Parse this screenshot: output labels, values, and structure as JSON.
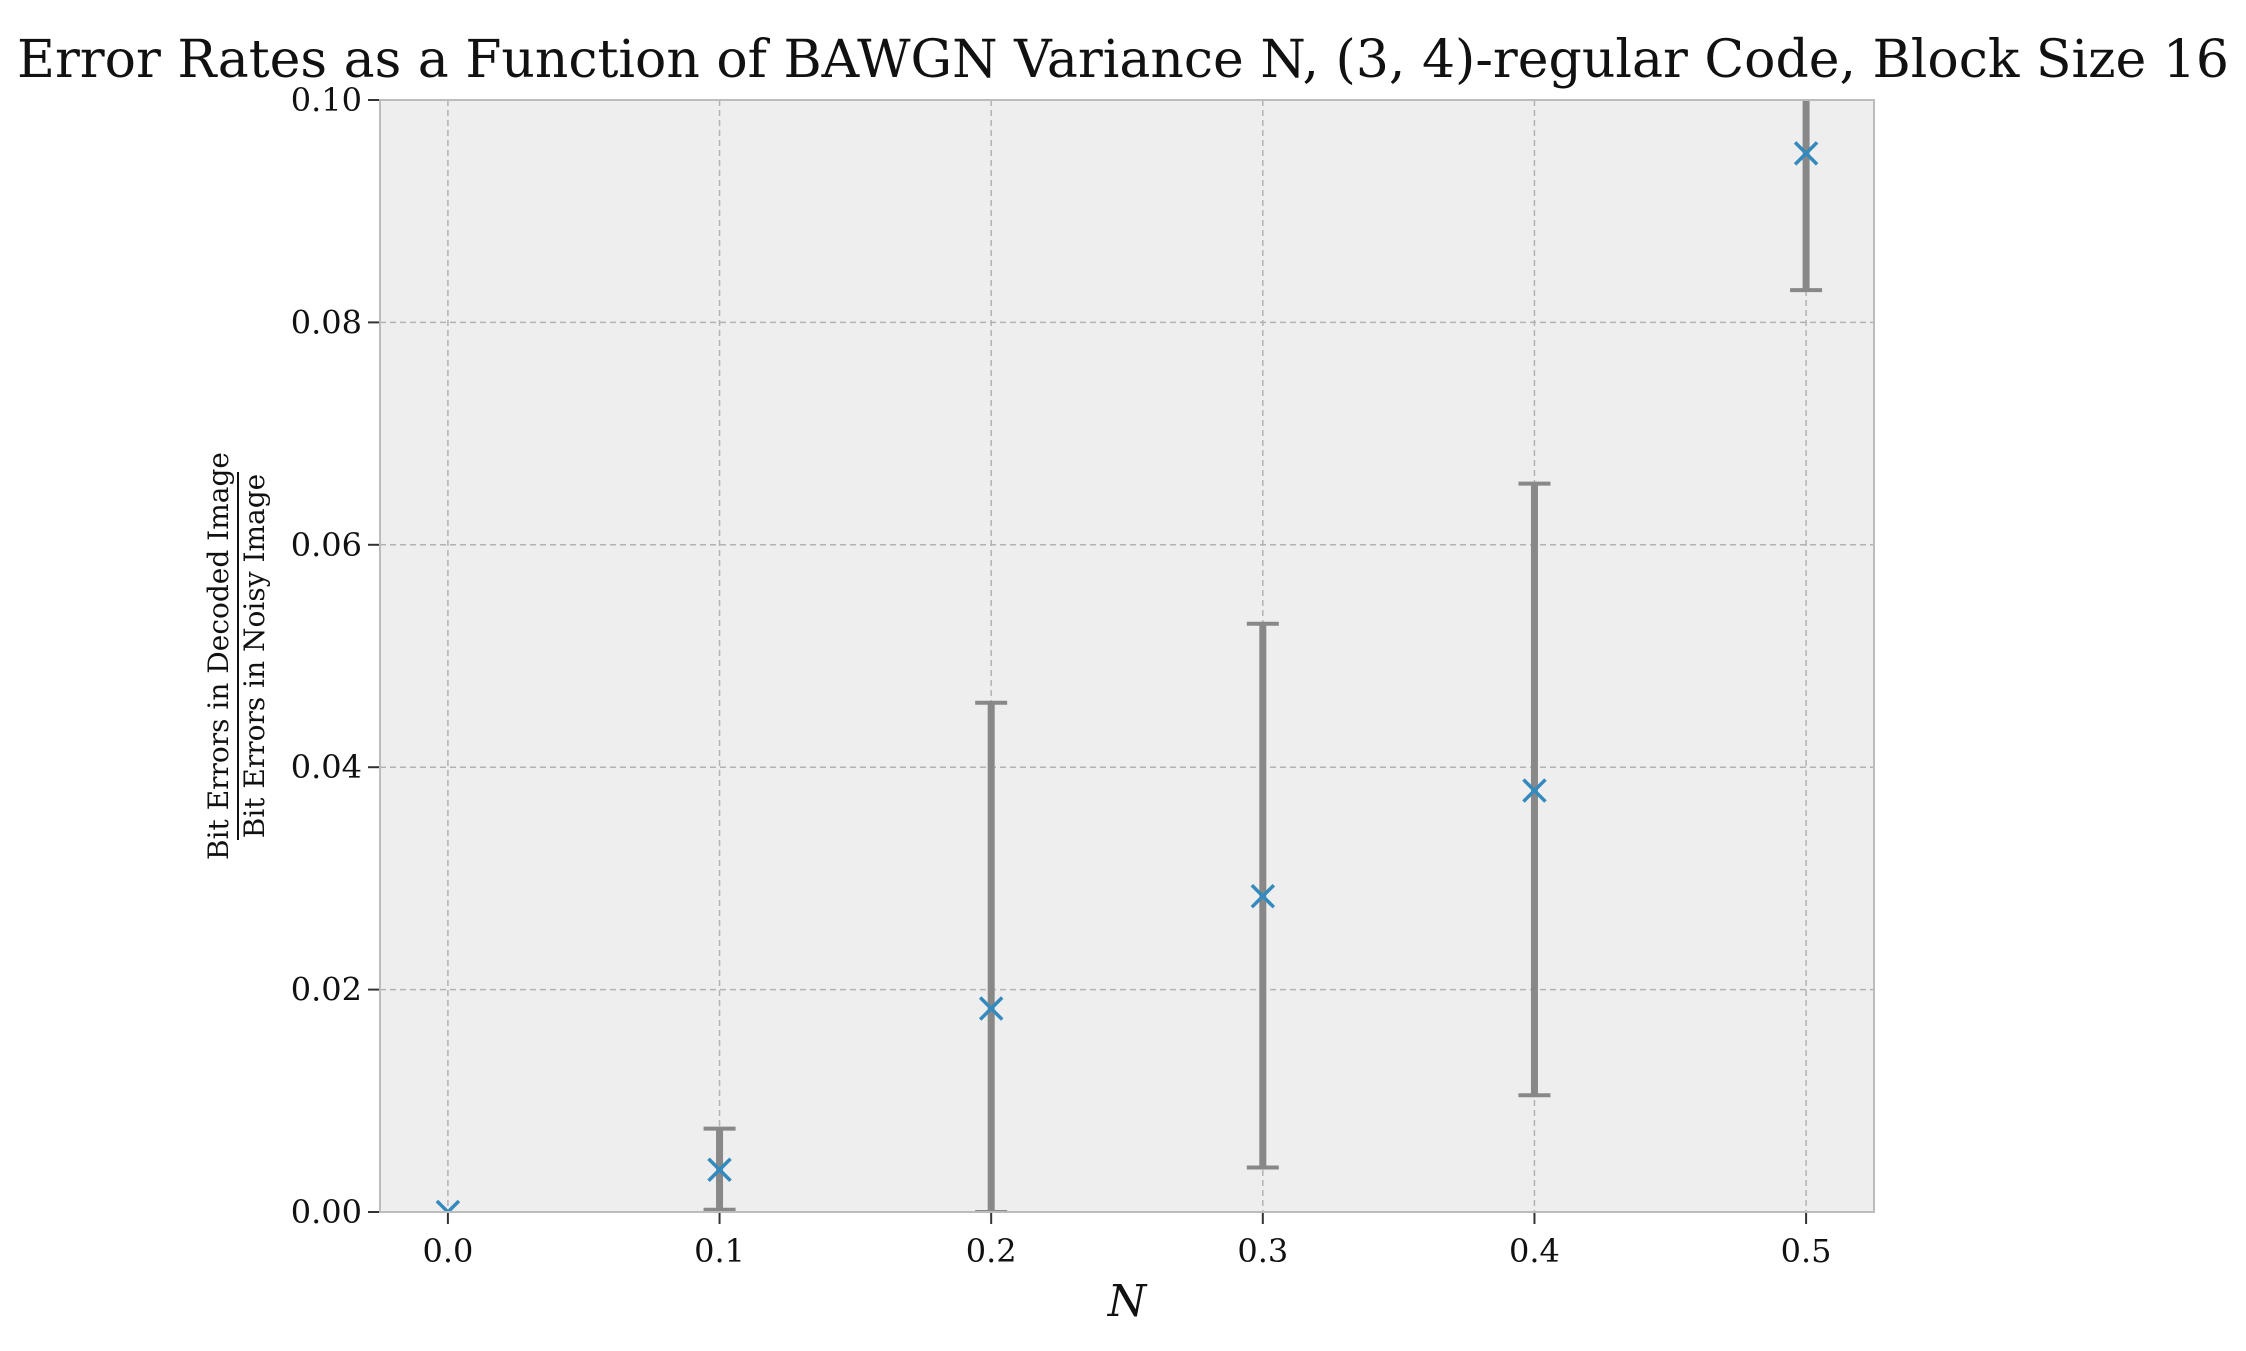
{
  "chart_data": {
    "type": "scatter",
    "title": "Error Rates as a Function of BAWGN Variance N, (3, 4)-regular Code, Block Size 16",
    "xlabel": "N",
    "ylabel_numerator": "Bit Errors in Decoded Image",
    "ylabel_denominator": "Bit Errors in Noisy Image",
    "xlim": [
      -0.025,
      0.525
    ],
    "ylim": [
      0.0,
      0.1
    ],
    "x_ticks": [
      "0.0",
      "0.1",
      "0.2",
      "0.3",
      "0.4",
      "0.5"
    ],
    "y_ticks": [
      "0.00",
      "0.02",
      "0.04",
      "0.06",
      "0.08",
      "0.10"
    ],
    "grid": true,
    "legend": "none",
    "marker": "x",
    "colors": {
      "marker": "#348ABD",
      "errorbar": "#888888",
      "plot_background": "#EEEEEE",
      "grid": "#B2B2B2",
      "spine": "#BCBCBC"
    },
    "points": [
      {
        "x": 0.0,
        "y": 0.0,
        "err_low": 0.0,
        "err_high": 0.0
      },
      {
        "x": 0.1,
        "y": 0.0038,
        "err_low": 0.0002,
        "err_high": 0.0075
      },
      {
        "x": 0.2,
        "y": 0.0183,
        "err_low": 0.0,
        "err_high": 0.0458
      },
      {
        "x": 0.3,
        "y": 0.0284,
        "err_low": 0.004,
        "err_high": 0.0529
      },
      {
        "x": 0.4,
        "y": 0.0379,
        "err_low": 0.0105,
        "err_high": 0.0655
      },
      {
        "x": 0.5,
        "y": 0.0952,
        "err_low": 0.0829,
        "err_high": 0.1075
      }
    ]
  }
}
